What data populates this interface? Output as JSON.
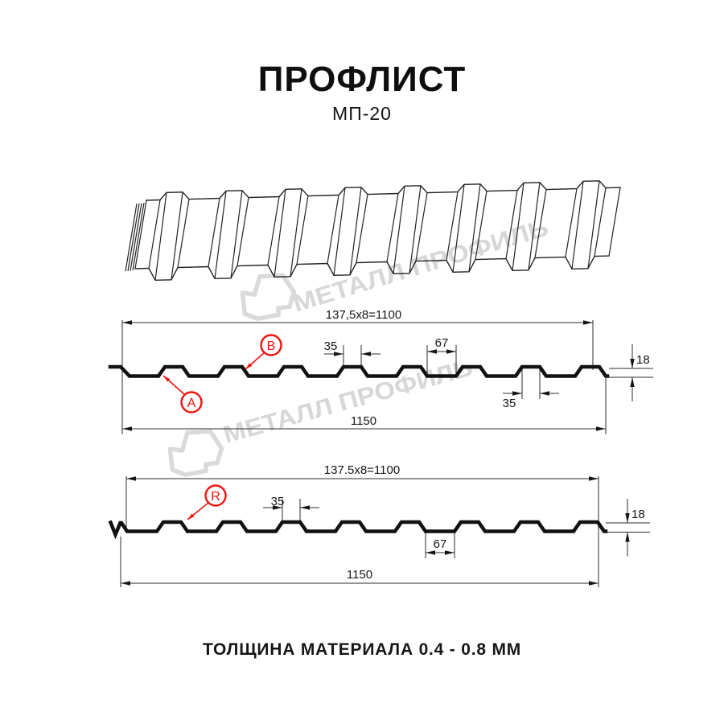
{
  "header": {
    "title": "ПРОФЛИСТ",
    "subtitle": "МП-20"
  },
  "footer": {
    "note": "ТОЛЩИНА МАТЕРИАЛА 0.4 - 0.8 ММ"
  },
  "watermark": {
    "brand": "МЕТАЛЛ ПРОФИЛЬ",
    "color": "#d7d7d7",
    "logo_icon": "metall-profil-logo"
  },
  "colors": {
    "line": "#1c1c1c",
    "profile": "#111111",
    "accent_red": "#ef1410"
  },
  "diagram_top": {
    "module_width_label": "137,5x8=1100",
    "rib_top_width_label": "35",
    "valley_width_label": "67",
    "rib_top_width_bottom_label": "35",
    "overall_width_label": "1150",
    "height_label": "18",
    "callout_a": "A",
    "callout_b": "B"
  },
  "diagram_bottom": {
    "module_width_label": "137.5x8=1100",
    "rib_top_width_label": "35",
    "valley_width_label": "67",
    "overall_width_label": "1150",
    "height_label": "18",
    "callout_r": "R"
  }
}
